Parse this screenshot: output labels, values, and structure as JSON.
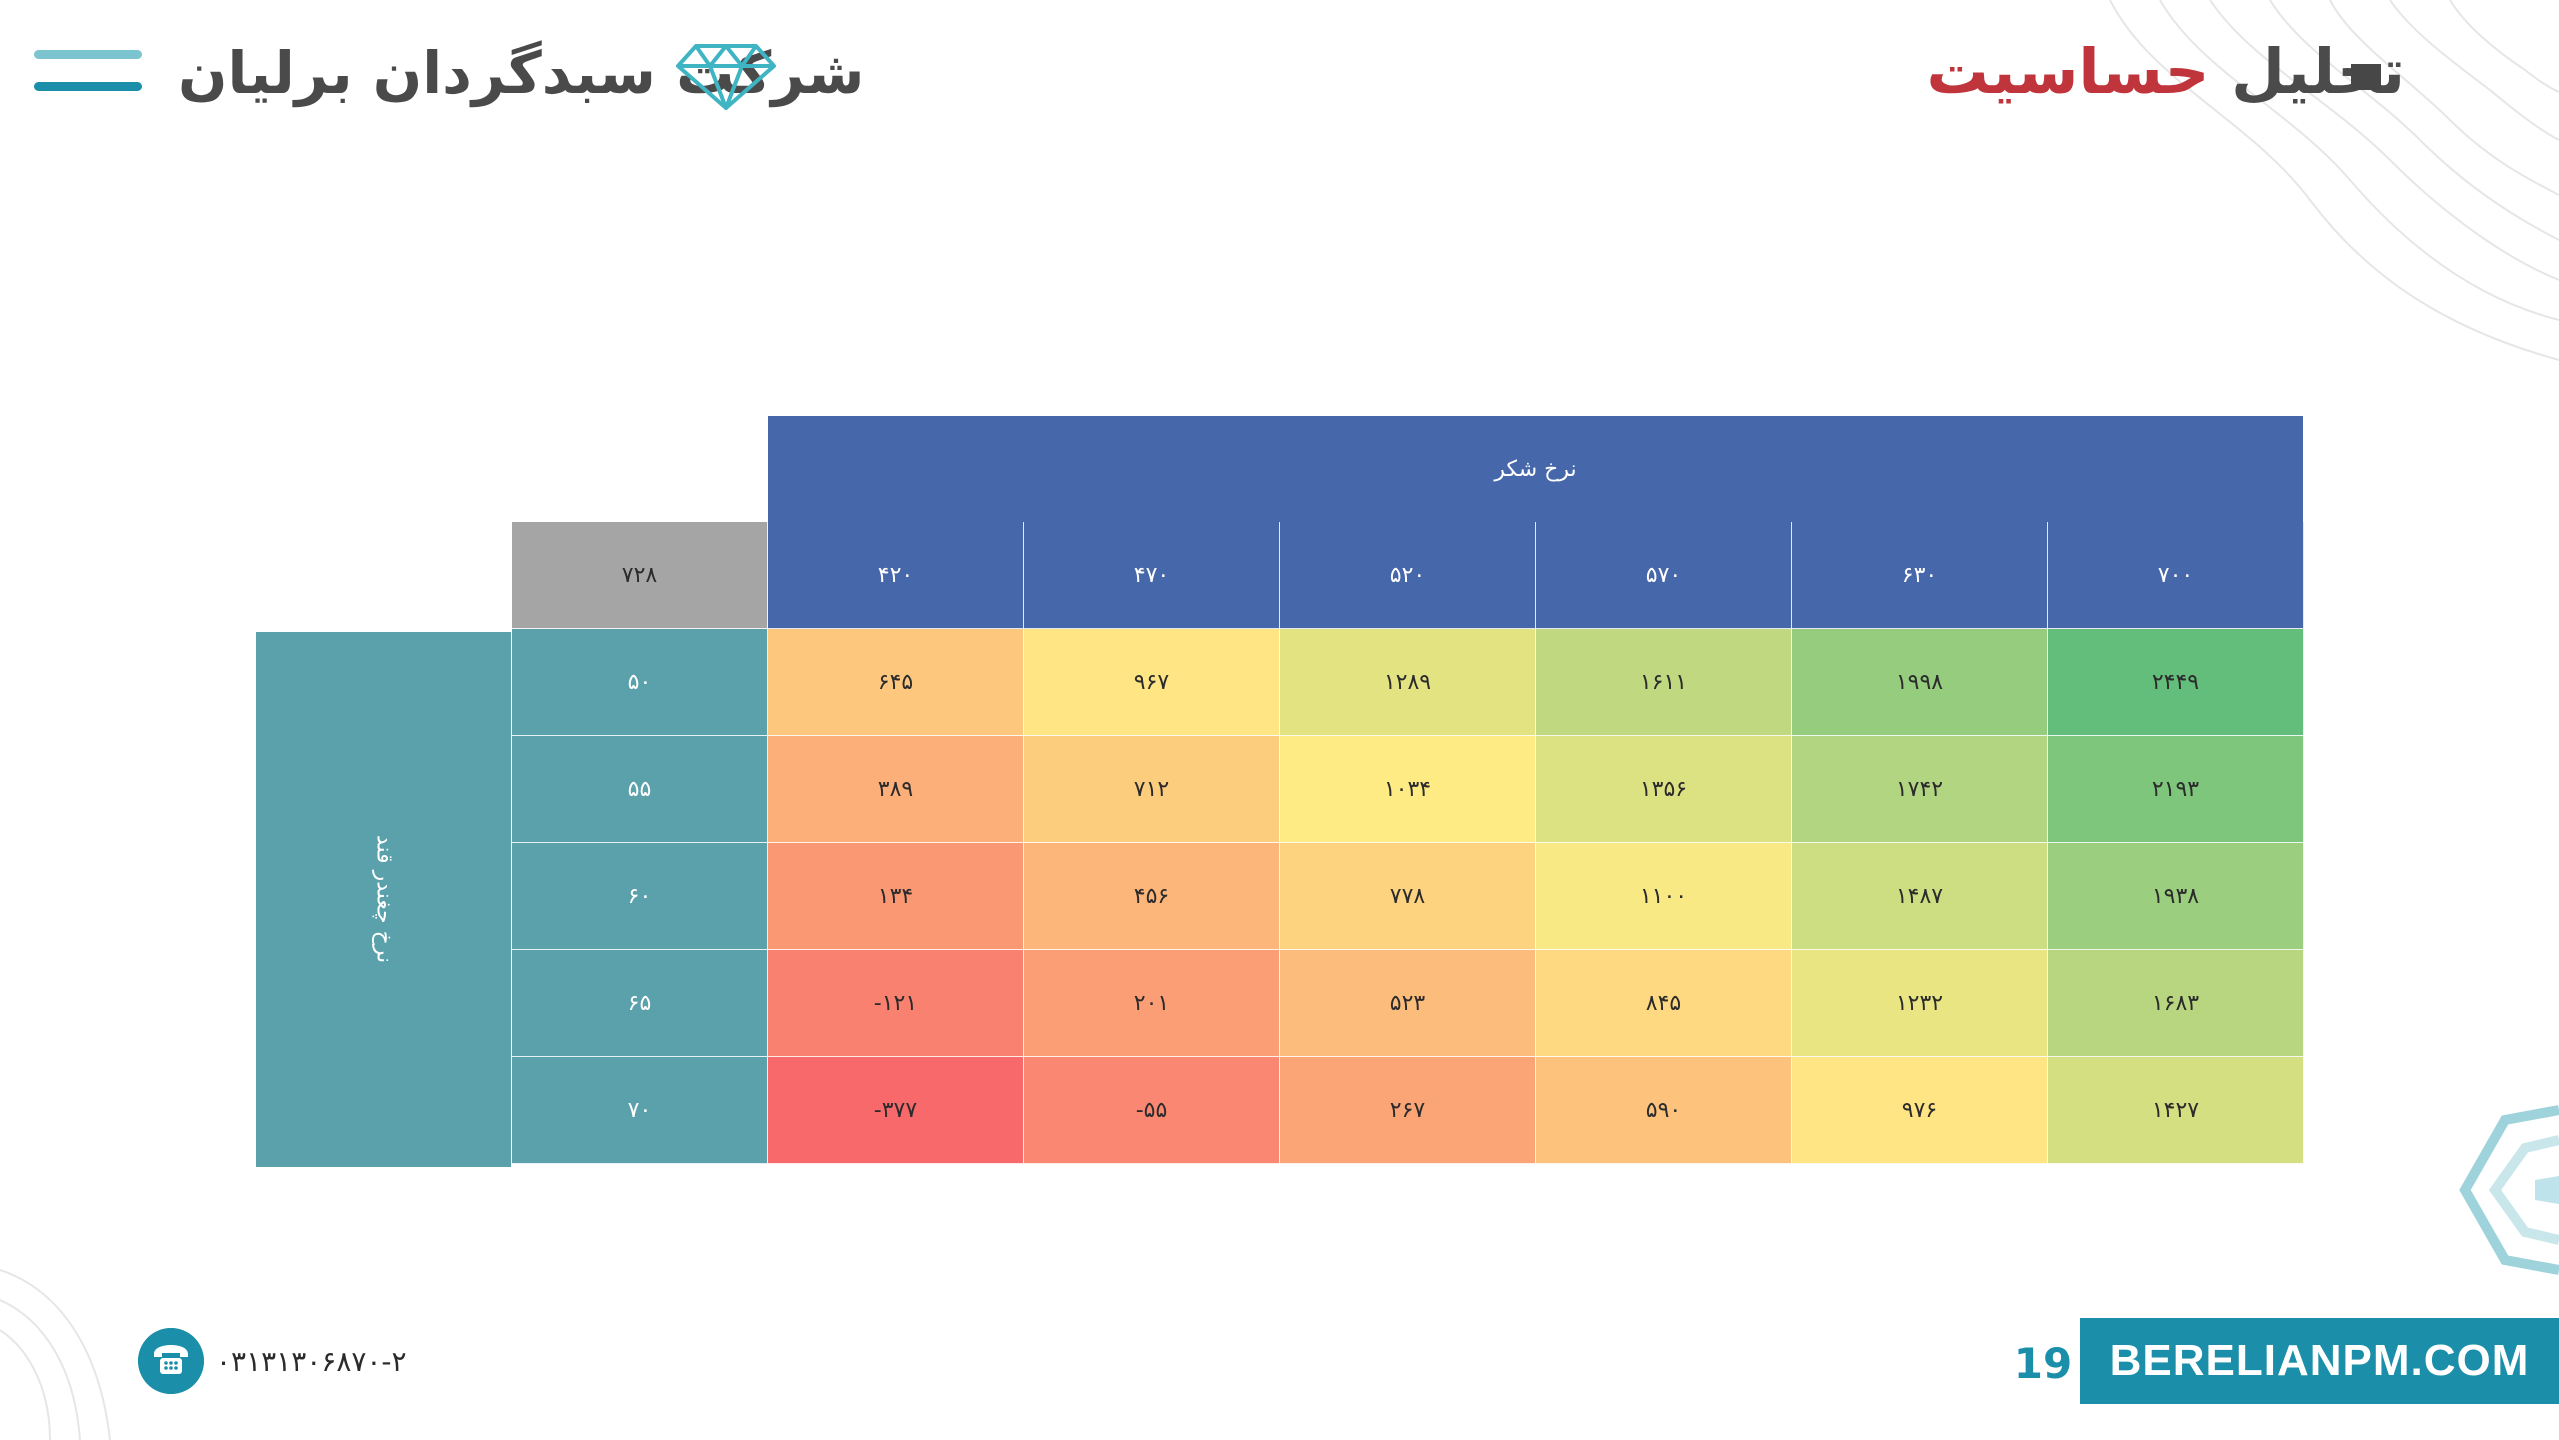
{
  "header": {
    "company_name": "شرکت سبدگردان برلیان",
    "title_part1": "تحلیل",
    "title_part2": "حساسیت"
  },
  "table": {
    "column_axis_label": "نرخ شکر",
    "row_axis_label": "نرخ چغندر قند",
    "corner_value": "۷۲۸",
    "columns": [
      "۴۲۰",
      "۴۷۰",
      "۵۲۰",
      "۵۷۰",
      "۶۳۰",
      "۷۰۰"
    ],
    "rows": [
      {
        "label": "۵۰",
        "values": [
          "۶۴۵",
          "۹۶۷",
          "۱۲۸۹",
          "۱۶۱۱",
          "۱۹۹۸",
          "۲۴۴۹"
        ]
      },
      {
        "label": "۵۵",
        "values": [
          "۳۸۹",
          "۷۱۲",
          "۱۰۳۴",
          "۱۳۵۶",
          "۱۷۴۲",
          "۲۱۹۳"
        ]
      },
      {
        "label": "۶۰",
        "values": [
          "۱۳۴",
          "۴۵۶",
          "۷۷۸",
          "۱۱۰۰",
          "۱۴۸۷",
          "۱۹۳۸"
        ]
      },
      {
        "label": "۶۵",
        "values": [
          "-۱۲۱",
          "۲۰۱",
          "۵۲۳",
          "۸۴۵",
          "۱۲۳۲",
          "۱۶۸۳"
        ]
      },
      {
        "label": "۷۰",
        "values": [
          "-۳۷۷",
          "-۵۵",
          "۲۶۷",
          "۵۹۰",
          "۹۷۶",
          "۱۴۲۷"
        ]
      }
    ],
    "numeric_values": [
      [
        645,
        967,
        1289,
        1611,
        1998,
        2449
      ],
      [
        389,
        712,
        1034,
        1356,
        1742,
        2193
      ],
      [
        134,
        456,
        778,
        1100,
        1487,
        1938
      ],
      [
        -121,
        201,
        523,
        845,
        1232,
        1683
      ],
      [
        -377,
        -55,
        267,
        590,
        976,
        1427
      ]
    ],
    "colors": {
      "header": "#4767ab",
      "row_header": "#5aa1ac",
      "corner": "#a5a5a5",
      "scale_low": "#f8696b",
      "scale_mid": "#ffeb84",
      "scale_high": "#63be7b"
    }
  },
  "footer": {
    "phone": "۰۳۱۳۱۳۰۶۸۷۰-۲",
    "page_number": "19",
    "website": "BERELIANPM.COM"
  },
  "icons": {
    "menu": "menu-icon",
    "logo": "diamond-icon",
    "phone": "phone-icon"
  }
}
